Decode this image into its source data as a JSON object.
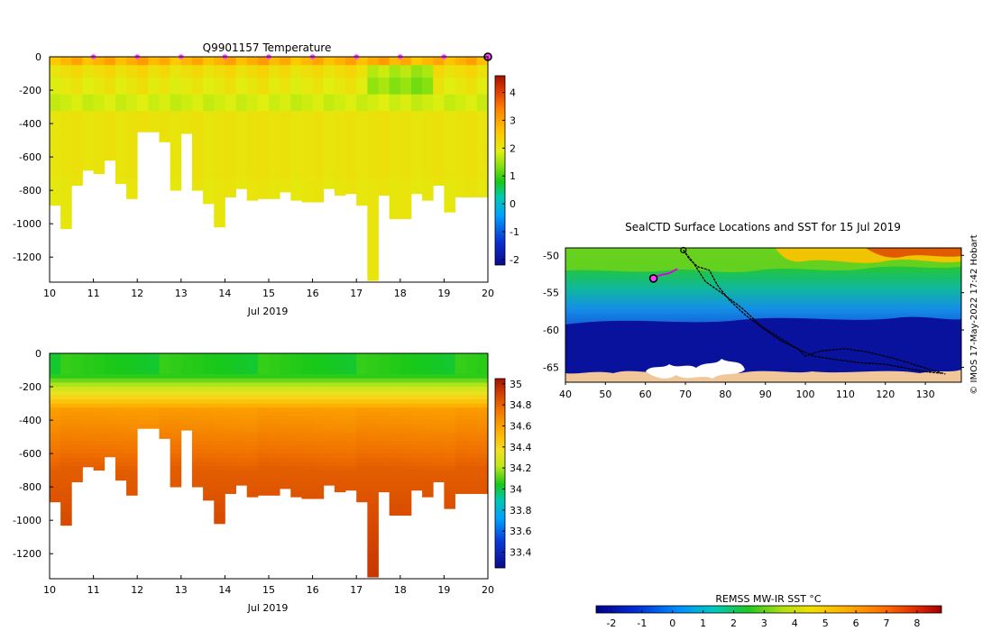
{
  "chart_data": [
    {
      "type": "heatmap",
      "title": "Q9901157  Temperature",
      "xlabel": "Jul 2019",
      "x_ticks": [
        "10",
        "11",
        "12",
        "13",
        "14",
        "15",
        "16",
        "17",
        "18",
        "19",
        "20"
      ],
      "y_ticks": [
        "0",
        "-200",
        "-400",
        "-600",
        "-800",
        "-1000",
        "-1200"
      ],
      "x_range": [
        10,
        20
      ],
      "y_range": [
        -1350,
        0
      ],
      "colorbar_ticks": [
        "4",
        "3",
        "2",
        "1",
        "0",
        "-1",
        "-2"
      ],
      "colorbar_range": [
        -2.2,
        4.6
      ],
      "profile_days": [
        10.0,
        10.25,
        10.5,
        10.75,
        11.0,
        11.25,
        11.5,
        11.75,
        12.0,
        12.25,
        12.5,
        12.75,
        13.0,
        13.25,
        13.5,
        13.75,
        14.0,
        14.25,
        14.5,
        14.75,
        15.0,
        15.25,
        15.5,
        15.75,
        16.0,
        16.25,
        16.5,
        16.75,
        17.0,
        17.25,
        17.5,
        17.75,
        18.0,
        18.25,
        18.5,
        18.75,
        19.0,
        19.25,
        19.5,
        19.75
      ],
      "profile_max_depth": [
        890,
        1030,
        770,
        680,
        700,
        620,
        760,
        850,
        450,
        450,
        510,
        800,
        460,
        800,
        880,
        1020,
        840,
        790,
        860,
        850,
        850,
        810,
        860,
        870,
        870,
        790,
        830,
        820,
        890,
        1340,
        830,
        970,
        970,
        820,
        860,
        770,
        930,
        840,
        840,
        840
      ],
      "surface_marker_days": [
        11,
        12,
        13,
        14,
        15,
        16,
        17,
        18,
        19
      ],
      "latest_profile_day": 20
    },
    {
      "type": "heatmap",
      "title": "",
      "xlabel": "Jul 2019",
      "x_ticks": [
        "10",
        "11",
        "12",
        "13",
        "14",
        "15",
        "16",
        "17",
        "18",
        "19",
        "20"
      ],
      "y_ticks": [
        "0",
        "-200",
        "-400",
        "-600",
        "-800",
        "-1000",
        "-1200"
      ],
      "x_range": [
        10,
        20
      ],
      "y_range": [
        -1350,
        0
      ],
      "colorbar_ticks": [
        "35",
        "34.8",
        "34.6",
        "34.4",
        "34.2",
        "34",
        "33.8",
        "33.6",
        "33.4"
      ],
      "colorbar_range": [
        33.25,
        35.05
      ],
      "profile_days": [
        10.0,
        10.25,
        10.5,
        10.75,
        11.0,
        11.25,
        11.5,
        11.75,
        12.0,
        12.25,
        12.5,
        12.75,
        13.0,
        13.25,
        13.5,
        13.75,
        14.0,
        14.25,
        14.5,
        14.75,
        15.0,
        15.25,
        15.5,
        15.75,
        16.0,
        16.25,
        16.5,
        16.75,
        17.0,
        17.25,
        17.5,
        17.75,
        18.0,
        18.25,
        18.5,
        18.75,
        19.0,
        19.25,
        19.5,
        19.75
      ],
      "profile_max_depth": [
        890,
        1030,
        770,
        680,
        700,
        620,
        760,
        850,
        450,
        450,
        510,
        800,
        460,
        800,
        880,
        1020,
        840,
        790,
        860,
        850,
        850,
        810,
        860,
        870,
        870,
        790,
        830,
        820,
        890,
        1340,
        830,
        970,
        970,
        820,
        860,
        770,
        930,
        840,
        840,
        840
      ]
    },
    {
      "type": "map",
      "title": "SealCTD Surface Locations and SST for 15 Jul 2019",
      "x_ticks": [
        "40",
        "50",
        "60",
        "70",
        "80",
        "90",
        "100",
        "110",
        "120",
        "130"
      ],
      "y_ticks": [
        "-50",
        "-55",
        "-60",
        "-65"
      ],
      "lon_range": [
        40,
        139
      ],
      "lat_range": [
        -67,
        -49
      ],
      "colorbar_label": "REMSS MW-IR SST °C",
      "colorbar_ticks": [
        "-2",
        "-1",
        "0",
        "1",
        "2",
        "3",
        "4",
        "5",
        "6",
        "7",
        "8"
      ],
      "colorbar_range": [
        -2.5,
        8.8
      ],
      "credit": "© IMOS 17-May-2022 17:42 Hobart",
      "tracks": [
        [
          [
            69.5,
            -49.3
          ],
          [
            71,
            -50.5
          ],
          [
            73,
            -51.5
          ],
          [
            76,
            -52
          ],
          [
            78,
            -54
          ],
          [
            81,
            -56
          ],
          [
            85,
            -58
          ],
          [
            90,
            -60
          ],
          [
            94,
            -61.5
          ],
          [
            98,
            -62.5
          ],
          [
            102,
            -63.5
          ],
          [
            108,
            -64
          ],
          [
            114,
            -64.4
          ],
          [
            120,
            -64.6
          ],
          [
            126,
            -65.2
          ],
          [
            130,
            -65.6
          ],
          [
            134,
            -65.8
          ]
        ],
        [
          [
            69.5,
            -49.3
          ],
          [
            72,
            -51
          ],
          [
            75,
            -53.5
          ],
          [
            79,
            -55
          ],
          [
            84,
            -57
          ],
          [
            89,
            -59.5
          ],
          [
            94,
            -61.2
          ],
          [
            98,
            -62.5
          ],
          [
            100,
            -63.5
          ],
          [
            104,
            -62.8
          ],
          [
            110,
            -62.5
          ],
          [
            116,
            -63
          ],
          [
            122,
            -63.8
          ],
          [
            127,
            -64.6
          ],
          [
            131,
            -65.3
          ],
          [
            135,
            -65.9
          ]
        ]
      ],
      "recent_track": [
        [
          62,
          -53
        ],
        [
          64,
          -52.6
        ],
        [
          66,
          -52.4
        ],
        [
          68,
          -51.8
        ]
      ],
      "current_position": [
        62,
        -53.1
      ],
      "deploy_position": [
        69.5,
        -49.3
      ]
    }
  ],
  "colors": {
    "recent_track": "#dd00dd",
    "marker_fill": "#ff40ff",
    "land": "#f1c79a",
    "ice": "#ffffff",
    "track": "#000000"
  }
}
